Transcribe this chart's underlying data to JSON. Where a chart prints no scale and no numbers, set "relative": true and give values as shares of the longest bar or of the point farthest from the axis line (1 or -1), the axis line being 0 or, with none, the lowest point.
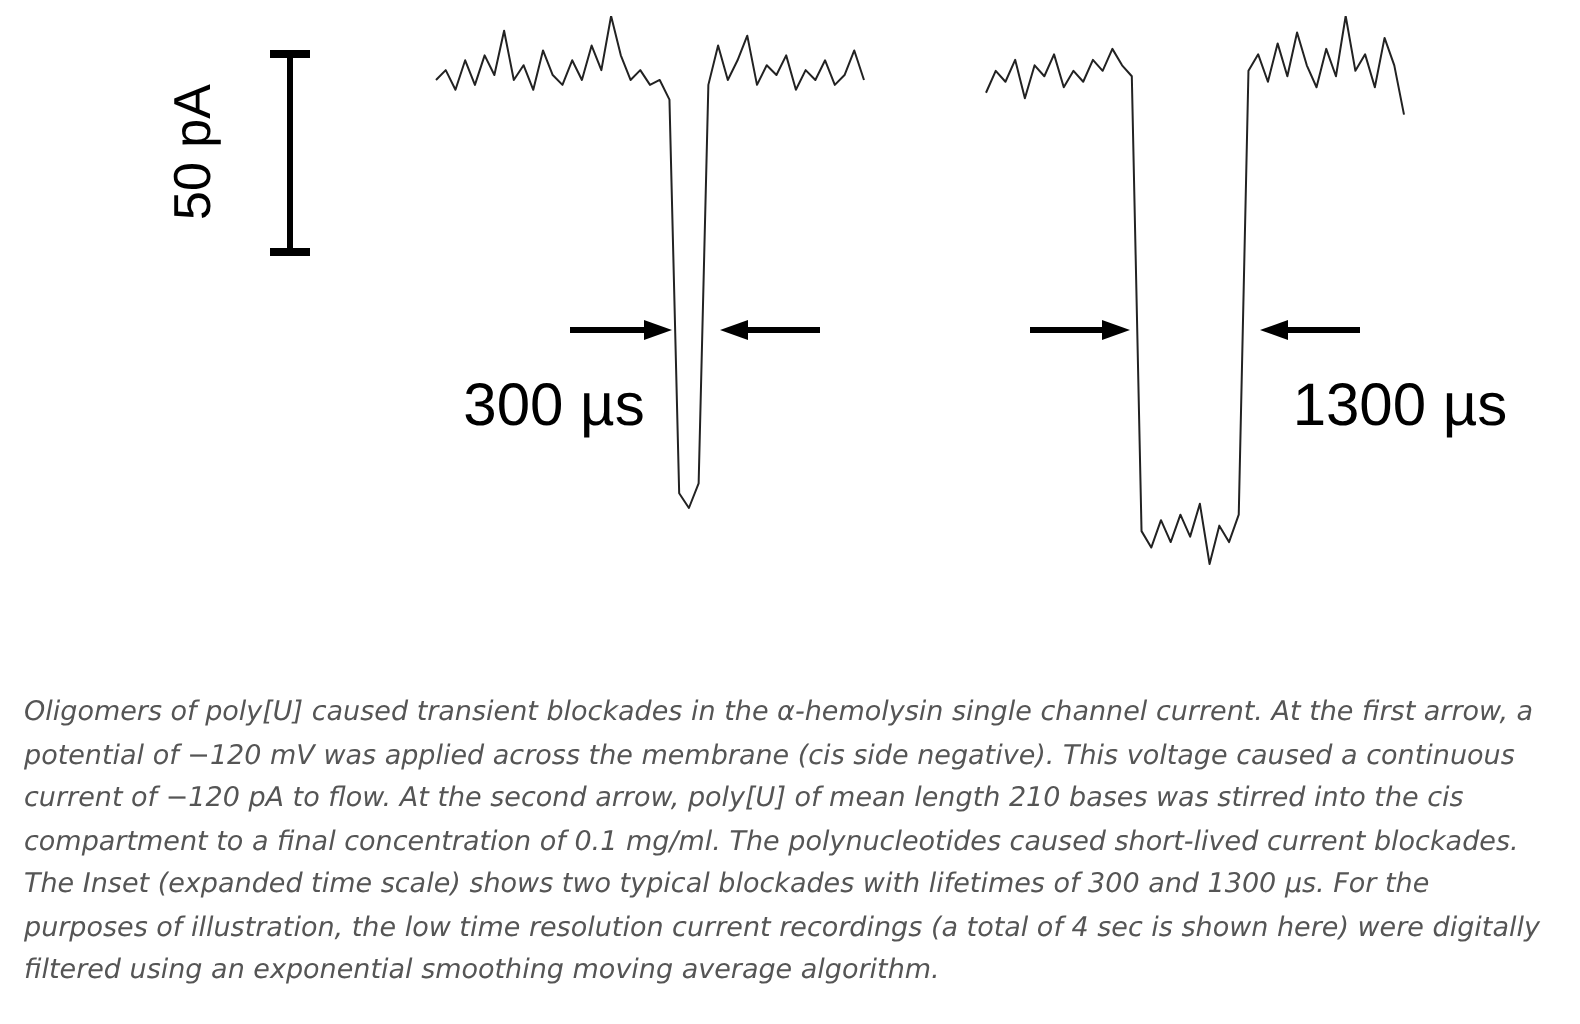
{
  "chart_data": [
    {
      "type": "line",
      "relative": true,
      "line_style": "solid",
      "categories": [
        null,
        null,
        null,
        null,
        null,
        null,
        null,
        null,
        null,
        null,
        null,
        null,
        null,
        null,
        null,
        null,
        null,
        null,
        null,
        null,
        null,
        null,
        null,
        null,
        null,
        null,
        null,
        null,
        null,
        null,
        null,
        null,
        null,
        null,
        null,
        null,
        null,
        null,
        null,
        null,
        null,
        null,
        null,
        null,
        null
      ],
      "series": [
        {
          "color": "#222222",
          "values": [
            0.87,
            0.89,
            0.85,
            0.91,
            0.86,
            0.92,
            0.88,
            0.97,
            0.87,
            0.9,
            0.85,
            0.93,
            0.88,
            0.86,
            0.91,
            0.87,
            0.94,
            0.89,
            1.0,
            0.92,
            0.87,
            0.89,
            0.86,
            0.87,
            0.83,
            0.03,
            0.0,
            0.05,
            0.86,
            0.94,
            0.87,
            0.91,
            0.96,
            0.86,
            0.9,
            0.88,
            0.92,
            0.85,
            0.89,
            0.87,
            0.91,
            0.86,
            0.88,
            0.93,
            0.87
          ]
        }
      ],
      "annotations": [
        "50 pA",
        "300 µs",
        "Oligomers of poly[U] caused transient blockades in the α-hemolysin single channel current. At the first arrow, a potential of −120 mV was applied across the membrane (cis side negative). This voltage caused a continuous current of −120 pA to flow. At the second arrow, poly[U] of mean length 210 bases was stirred into the cis compartment to a final concentration of 0.1 mg/ml. The polynucleotides caused short-lived current blockades. The Inset (expanded time scale) shows two typical blockades with lifetimes of 300 and 1300 µs. For the purposes of illustration, the low time resolution current recordings (a total of 4 sec is shown here) were digitally filtered using an exponential smoothing moving average algorithm."
      ]
    },
    {
      "type": "line",
      "relative": true,
      "line_style": "solid",
      "categories": [
        null,
        null,
        null,
        null,
        null,
        null,
        null,
        null,
        null,
        null,
        null,
        null,
        null,
        null,
        null,
        null,
        null,
        null,
        null,
        null,
        null,
        null,
        null,
        null,
        null,
        null,
        null,
        null,
        null,
        null,
        null,
        null,
        null,
        null,
        null,
        null,
        null,
        null,
        null,
        null,
        null,
        null,
        null,
        null
      ],
      "series": [
        {
          "color": "#222222",
          "values": [
            0.86,
            0.9,
            0.88,
            0.92,
            0.85,
            0.91,
            0.89,
            0.93,
            0.87,
            0.9,
            0.88,
            0.92,
            0.9,
            0.94,
            0.91,
            0.89,
            0.06,
            0.03,
            0.08,
            0.04,
            0.09,
            0.05,
            0.11,
            0.0,
            0.07,
            0.04,
            0.09,
            0.9,
            0.93,
            0.88,
            0.95,
            0.89,
            0.97,
            0.91,
            0.87,
            0.94,
            0.89,
            1.0,
            0.9,
            0.93,
            0.87,
            0.96,
            0.91,
            0.82
          ]
        }
      ],
      "annotations": [
        "1300 µs"
      ]
    }
  ]
}
